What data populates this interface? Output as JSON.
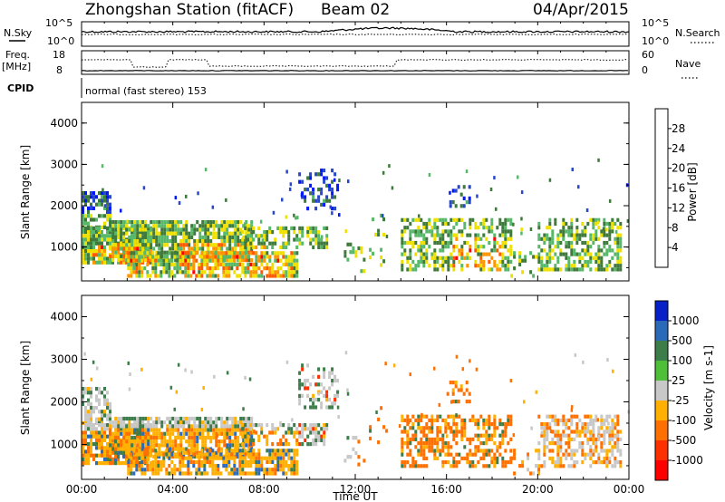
{
  "header": {
    "station": "Zhongshan Station (fitACF)",
    "beam": "Beam 02",
    "date": "04/Apr/2015"
  },
  "top_panels": {
    "nsky_label": "N.Sky",
    "nsky_ticks": [
      "10^5",
      "10^0"
    ],
    "nsearch_label": "N.Search",
    "nsearch_ticks": [
      "10^5",
      "10^0"
    ],
    "freq_label_1": "Freq.",
    "freq_label_2": "[MHz]",
    "freq_ticks": [
      "18",
      "8"
    ],
    "nave_label": "Nave",
    "nave_ticks": [
      "60",
      "0"
    ],
    "cpid_label": "CPID",
    "cpid_text": "normal (fast stereo) 153"
  },
  "chart_data": [
    {
      "type": "heatmap",
      "name": "power",
      "ylabel": "Slant Range [km]",
      "xlabel": "",
      "x_ticks": [
        "00:00",
        "04:00",
        "08:00",
        "12:00",
        "16:00",
        "20:00",
        "00:00"
      ],
      "x_hours": [
        0,
        4,
        8,
        12,
        16,
        20,
        24
      ],
      "xlim": [
        0,
        24
      ],
      "ylim": [
        180,
        4500
      ],
      "y_ticks": [
        1000,
        2000,
        3000,
        4000
      ],
      "colorbar_label": "Power [dB]",
      "colorbar_ticks": [
        "4",
        "8",
        "12",
        "16",
        "20",
        "24",
        "28"
      ],
      "colorbar_colors": [
        "#0018ff",
        "#2848c8",
        "#3f7a3c",
        "#58b86a",
        "#f0e000",
        "#ff9400",
        "#ff5a00",
        "#ff0000"
      ]
    },
    {
      "type": "heatmap",
      "name": "velocity",
      "ylabel": "Slant Range [km]",
      "xlabel": "Time UT",
      "x_ticks": [
        "00:00",
        "04:00",
        "08:00",
        "12:00",
        "16:00",
        "20:00",
        "00:00"
      ],
      "x_hours": [
        0,
        4,
        8,
        12,
        16,
        20,
        24
      ],
      "xlim": [
        0,
        24
      ],
      "ylim": [
        180,
        4500
      ],
      "y_ticks": [
        1000,
        2000,
        3000,
        4000
      ],
      "colorbar_label": "Velocity [m s-1]",
      "colorbar_ticks": [
        "1000",
        "500",
        "100",
        "25",
        "-25",
        "-100",
        "-500",
        "-1000"
      ],
      "colorbar_colors": [
        "#0820c8",
        "#2a6ab8",
        "#3c7d4a",
        "#4fbf3a",
        "#c8c8c8",
        "#ffb000",
        "#ff7000",
        "#ff3000",
        "#ff0000"
      ]
    }
  ]
}
